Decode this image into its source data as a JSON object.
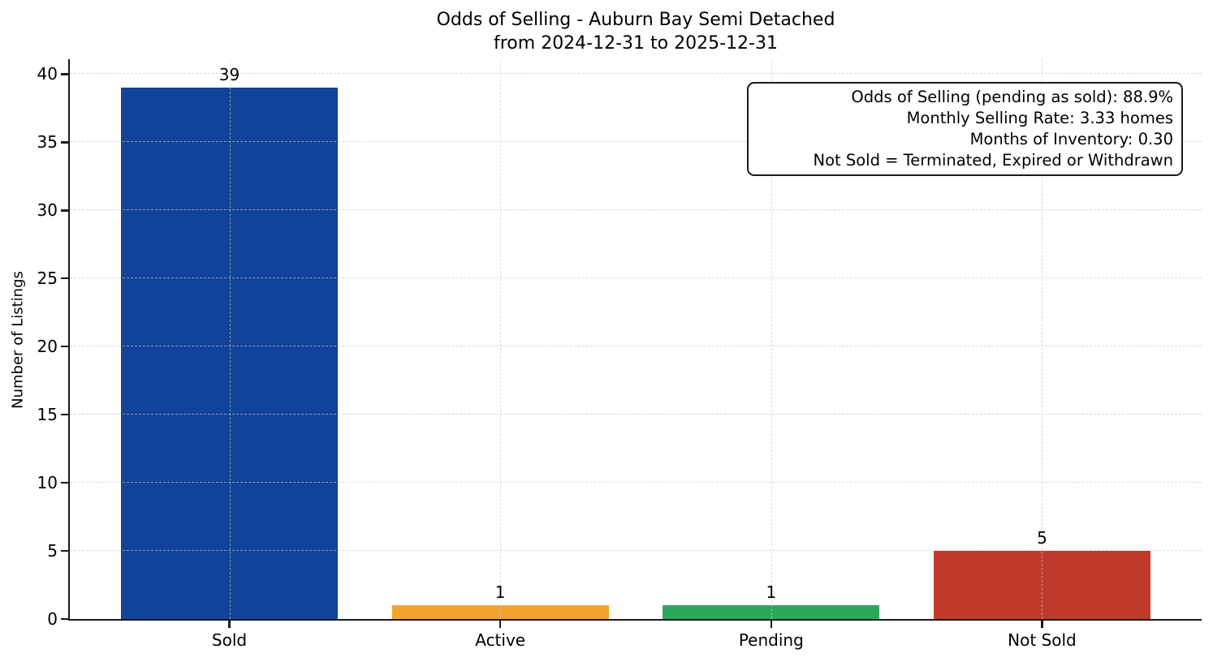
{
  "title": {
    "line1": "Odds of Selling - Auburn Bay Semi Detached",
    "line2": "from 2024-12-31 to 2025-12-31"
  },
  "chart_data": {
    "type": "bar",
    "title": "Odds of Selling - Auburn Bay Semi Detached\nfrom 2024-12-31 to 2025-12-31",
    "categories": [
      "Sold",
      "Active",
      "Pending",
      "Not Sold"
    ],
    "values": [
      39,
      1,
      1,
      5
    ],
    "value_labels": [
      "39",
      "1",
      "1",
      "5"
    ],
    "bar_colors": [
      "#11439b",
      "#f2a32e",
      "#2ca85e",
      "#c23a2b"
    ],
    "xlabel": "",
    "ylabel": "Number of Listings",
    "yticks": [
      0,
      5,
      10,
      15,
      20,
      25,
      30,
      35,
      40
    ],
    "ylim": [
      0,
      41.1
    ],
    "grid": true,
    "grid_style": "dashed",
    "legend": "none",
    "bar_width_fraction": 0.8
  },
  "annotation_box": {
    "lines": [
      "Odds of Selling (pending as sold): 88.9%",
      "Monthly Selling Rate: 3.33 homes",
      "Months of Inventory: 0.30",
      "Not Sold = Terminated, Expired or Withdrawn"
    ]
  },
  "colors": {
    "background": "#ffffff",
    "axis": "#1a1a1a",
    "grid": "#c8c8c8",
    "text": "#000000",
    "sold_bar": "#11439b",
    "active_bar": "#f2a32e",
    "pending_bar": "#2ca85e",
    "not_sold_bar": "#c23a2b"
  }
}
